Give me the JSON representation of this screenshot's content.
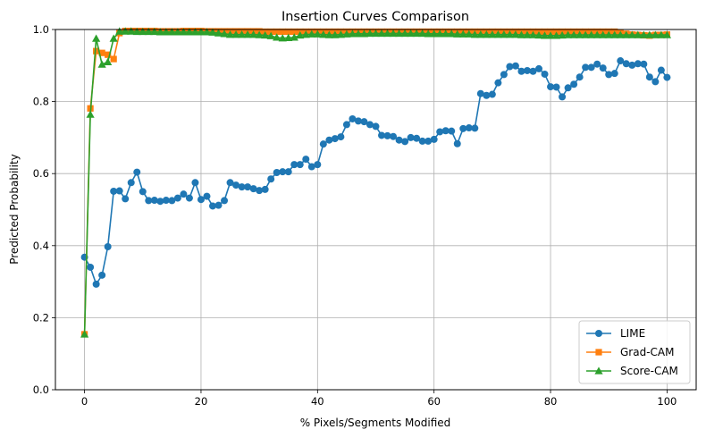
{
  "chart_data": {
    "type": "line",
    "title": "Insertion Curves Comparison",
    "xlabel": "% Pixels/Segments Modified",
    "ylabel": "Predicted Probability",
    "xlim": [
      -5,
      105
    ],
    "ylim": [
      0.0,
      1.0
    ],
    "xticks": [
      0,
      20,
      40,
      60,
      80,
      100
    ],
    "yticks": [
      0.0,
      0.2,
      0.4,
      0.6,
      0.8,
      1.0
    ],
    "xtick_labels": [
      "0",
      "20",
      "40",
      "60",
      "80",
      "100"
    ],
    "ytick_labels": [
      "0.0",
      "0.2",
      "0.4",
      "0.6",
      "0.8",
      "1.0"
    ],
    "grid": true,
    "legend_position": "lower-right",
    "x": [
      0,
      1,
      2,
      3,
      4,
      5,
      6,
      7,
      8,
      9,
      10,
      11,
      12,
      13,
      14,
      15,
      16,
      17,
      18,
      19,
      20,
      21,
      22,
      23,
      24,
      25,
      26,
      27,
      28,
      29,
      30,
      31,
      32,
      33,
      34,
      35,
      36,
      37,
      38,
      39,
      40,
      41,
      42,
      43,
      44,
      45,
      46,
      47,
      48,
      49,
      50,
      51,
      52,
      53,
      54,
      55,
      56,
      57,
      58,
      59,
      60,
      61,
      62,
      63,
      64,
      65,
      66,
      67,
      68,
      69,
      70,
      71,
      72,
      73,
      74,
      75,
      76,
      77,
      78,
      79,
      80,
      81,
      82,
      83,
      84,
      85,
      86,
      87,
      88,
      89,
      90,
      91,
      92,
      93,
      94,
      95,
      96,
      97,
      98,
      99,
      100
    ],
    "series": [
      {
        "name": "LIME",
        "color": "#1f77b4",
        "marker": "circle",
        "values": [
          0.368,
          0.34,
          0.293,
          0.318,
          0.397,
          0.551,
          0.552,
          0.53,
          0.575,
          0.604,
          0.55,
          0.525,
          0.526,
          0.523,
          0.526,
          0.525,
          0.532,
          0.543,
          0.532,
          0.575,
          0.528,
          0.537,
          0.51,
          0.512,
          0.525,
          0.575,
          0.568,
          0.563,
          0.563,
          0.558,
          0.553,
          0.556,
          0.585,
          0.603,
          0.605,
          0.605,
          0.625,
          0.625,
          0.64,
          0.619,
          0.625,
          0.682,
          0.693,
          0.697,
          0.702,
          0.736,
          0.752,
          0.746,
          0.744,
          0.736,
          0.731,
          0.706,
          0.705,
          0.703,
          0.693,
          0.689,
          0.7,
          0.698,
          0.69,
          0.69,
          0.695,
          0.716,
          0.719,
          0.718,
          0.683,
          0.725,
          0.727,
          0.726,
          0.822,
          0.817,
          0.82,
          0.852,
          0.875,
          0.897,
          0.899,
          0.884,
          0.886,
          0.884,
          0.891,
          0.876,
          0.841,
          0.84,
          0.813,
          0.838,
          0.848,
          0.868,
          0.895,
          0.895,
          0.904,
          0.893,
          0.875,
          0.878,
          0.913,
          0.905,
          0.901,
          0.905,
          0.904,
          0.868,
          0.855,
          0.887,
          0.867
        ]
      },
      {
        "name": "Grad-CAM",
        "color": "#ff7f0e",
        "marker": "square",
        "values": [
          0.154,
          0.781,
          0.94,
          0.935,
          0.93,
          0.918,
          0.99,
          0.996,
          0.996,
          0.996,
          0.996,
          0.996,
          0.996,
          0.995,
          0.995,
          0.995,
          0.995,
          0.996,
          0.996,
          0.996,
          0.996,
          0.995,
          0.995,
          0.995,
          0.995,
          0.995,
          0.995,
          0.995,
          0.995,
          0.995,
          0.995,
          0.994,
          0.994,
          0.994,
          0.994,
          0.994,
          0.994,
          0.994,
          0.994,
          0.994,
          0.994,
          0.994,
          0.994,
          0.994,
          0.994,
          0.994,
          0.994,
          0.994,
          0.994,
          0.994,
          0.994,
          0.994,
          0.994,
          0.994,
          0.994,
          0.994,
          0.994,
          0.994,
          0.994,
          0.994,
          0.994,
          0.994,
          0.994,
          0.994,
          0.994,
          0.994,
          0.994,
          0.994,
          0.994,
          0.994,
          0.994,
          0.994,
          0.994,
          0.994,
          0.994,
          0.994,
          0.994,
          0.994,
          0.994,
          0.994,
          0.994,
          0.994,
          0.994,
          0.994,
          0.994,
          0.994,
          0.994,
          0.994,
          0.994,
          0.994,
          0.994,
          0.994,
          0.99,
          0.988,
          0.986,
          0.985,
          0.984,
          0.983,
          0.985,
          0.985,
          0.986
        ]
      },
      {
        "name": "Score-CAM",
        "color": "#2ca02c",
        "marker": "triangle",
        "values": [
          0.154,
          0.764,
          0.975,
          0.903,
          0.91,
          0.975,
          0.995,
          0.995,
          0.995,
          0.994,
          0.994,
          0.994,
          0.994,
          0.993,
          0.993,
          0.993,
          0.993,
          0.993,
          0.993,
          0.993,
          0.993,
          0.993,
          0.992,
          0.99,
          0.988,
          0.986,
          0.986,
          0.986,
          0.986,
          0.986,
          0.985,
          0.984,
          0.982,
          0.978,
          0.976,
          0.977,
          0.978,
          0.984,
          0.986,
          0.987,
          0.987,
          0.986,
          0.985,
          0.985,
          0.986,
          0.987,
          0.988,
          0.988,
          0.988,
          0.989,
          0.989,
          0.989,
          0.989,
          0.989,
          0.989,
          0.989,
          0.989,
          0.989,
          0.989,
          0.988,
          0.988,
          0.988,
          0.988,
          0.988,
          0.987,
          0.987,
          0.987,
          0.986,
          0.986,
          0.986,
          0.986,
          0.986,
          0.986,
          0.986,
          0.986,
          0.985,
          0.985,
          0.985,
          0.984,
          0.983,
          0.983,
          0.983,
          0.984,
          0.985,
          0.985,
          0.985,
          0.985,
          0.985,
          0.985,
          0.985,
          0.985,
          0.985,
          0.985,
          0.985,
          0.985,
          0.985,
          0.985,
          0.985,
          0.985,
          0.985,
          0.985
        ]
      }
    ]
  }
}
